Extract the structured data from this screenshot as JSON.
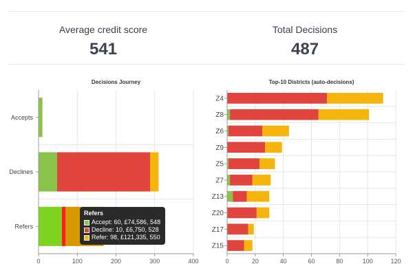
{
  "kpis": {
    "avg_credit_score": {
      "label": "Average credit score",
      "value": "541"
    },
    "total_decisions": {
      "label": "Total Decisions",
      "value": "487"
    }
  },
  "colors": {
    "accept": "#8bc34a",
    "decline": "#e0443c",
    "refer": "#f5b50c",
    "grid": "#e6e6e6",
    "axis": "#999999"
  },
  "chart_data": [
    {
      "type": "bar",
      "orientation": "horizontal",
      "stacked": true,
      "title": "Decisions Journey",
      "categories": [
        "Accepts",
        "Declines",
        "Refers"
      ],
      "series": [
        {
          "name": "Accept",
          "values": [
            10,
            48,
            60
          ]
        },
        {
          "name": "Decline",
          "values": [
            0,
            240,
            10
          ]
        },
        {
          "name": "Refer",
          "values": [
            0,
            22,
            98
          ]
        }
      ],
      "xlim": [
        0,
        400
      ],
      "xticks": [
        0,
        100,
        200,
        300,
        400
      ],
      "grid": true,
      "tooltip": {
        "title": "Refers",
        "lines": [
          "Accept: 60, £74,586, 548",
          "Decline: 10, £6,750, 528",
          "Refer: 98, £121,335, 550"
        ]
      }
    },
    {
      "type": "bar",
      "orientation": "horizontal",
      "stacked": true,
      "title": "Top-10 Districts (auto-decisions)",
      "categories": [
        "Z4",
        "Z8",
        "Z6",
        "Z9",
        "Z5",
        "Z7",
        "Z13",
        "Z20",
        "Z17",
        "Z15"
      ],
      "series": [
        {
          "name": "Accept",
          "values": [
            0,
            2,
            1,
            0,
            1,
            2,
            4,
            0,
            0,
            0
          ]
        },
        {
          "name": "Decline",
          "values": [
            71,
            63,
            24,
            27,
            22,
            16,
            10,
            21,
            15,
            12
          ]
        },
        {
          "name": "Refer",
          "values": [
            40,
            36,
            19,
            12,
            11,
            13,
            16,
            9,
            4,
            6
          ]
        }
      ],
      "xlim": [
        0,
        120
      ],
      "xticks": [
        0,
        20,
        40,
        60,
        80,
        100,
        120
      ],
      "grid": true
    }
  ]
}
